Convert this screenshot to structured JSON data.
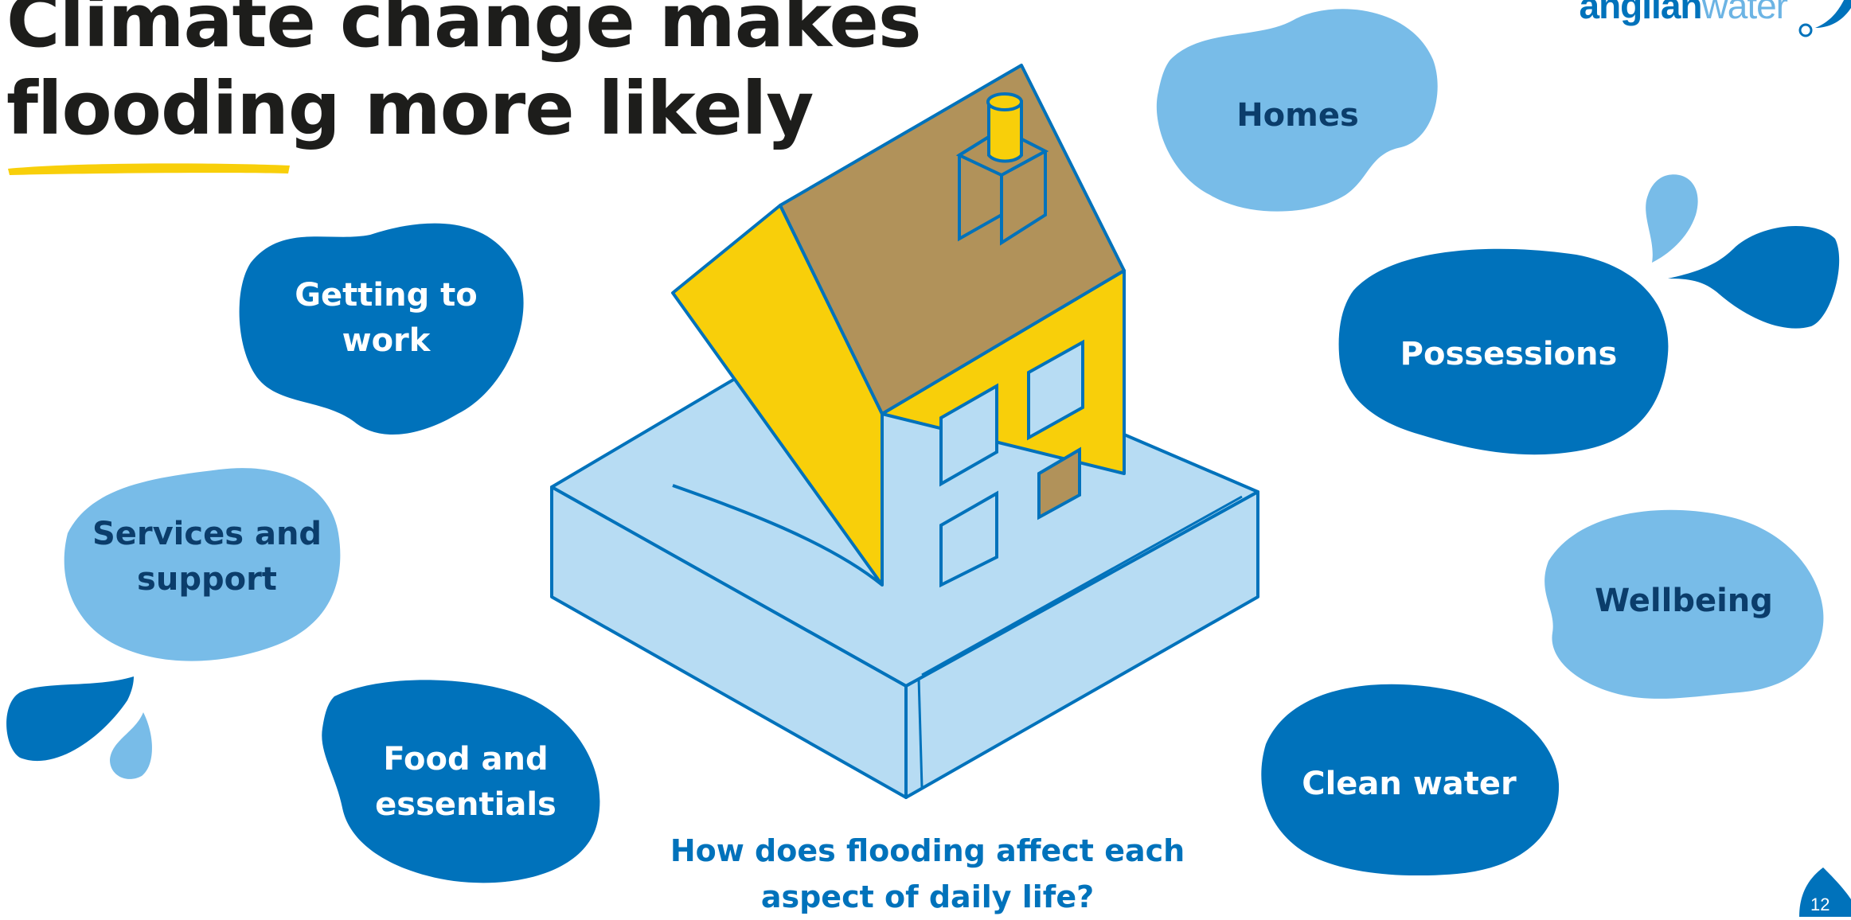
{
  "title": {
    "line1": "Climate change makes",
    "highlight": "flooding",
    "line2_rest": " more likely"
  },
  "bubbles": {
    "getting_to_work": "Getting to work",
    "services": "Services and support",
    "food": "Food and essentials",
    "homes": "Homes",
    "possessions": "Possessions",
    "wellbeing": "Wellbeing",
    "clean_water": "Clean water"
  },
  "question": "How does flooding affect each aspect of daily life?",
  "logo": {
    "part1": "anglian",
    "part2": "water"
  },
  "page_number": "12",
  "colors": {
    "dark_blue": "#0072bb",
    "light_blue": "#78bce8",
    "pale_blue": "#b7dcf3",
    "yellow": "#f8cf0a",
    "roof_brown": "#b1925a",
    "title_text": "#1d1d1b"
  }
}
